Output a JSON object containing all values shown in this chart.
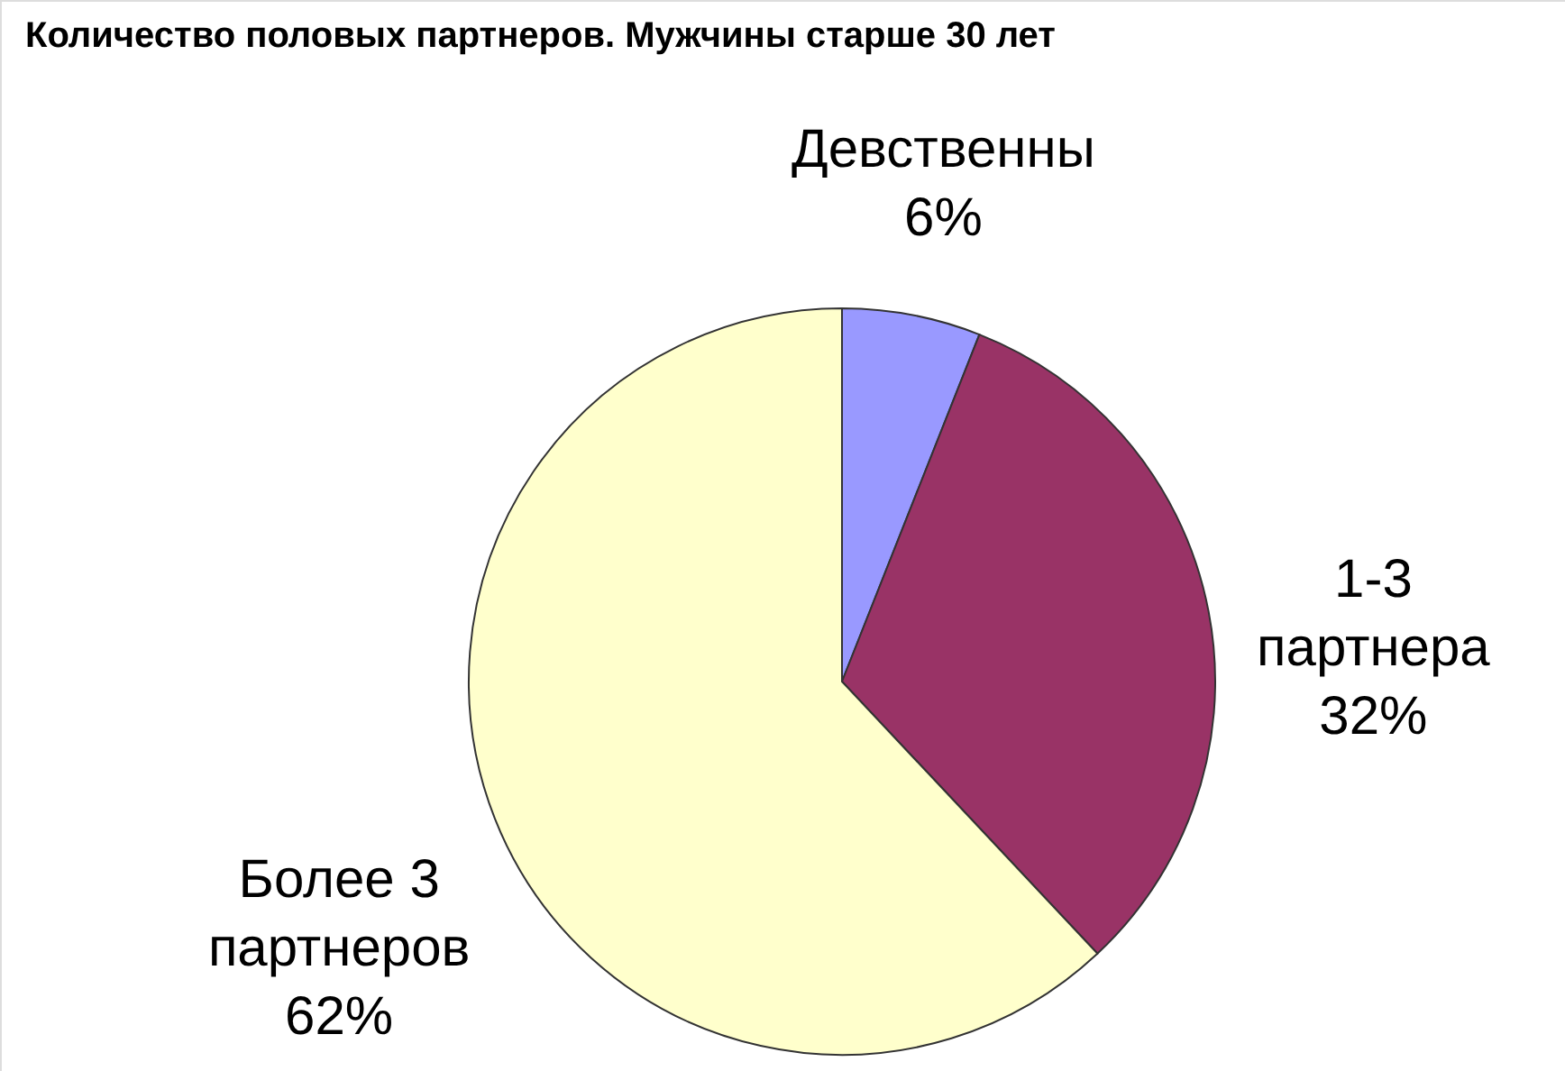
{
  "chart_data": {
    "type": "pie",
    "title": "Количество половых партнеров. Мужчины старше 30 лет",
    "categories": [
      "Девственны",
      "1-3\nпартнера",
      "Более 3\nпартнеров"
    ],
    "values": [
      6,
      32,
      62
    ],
    "colors": [
      "#9999ff",
      "#993366",
      "#ffffcc"
    ],
    "value_labels": [
      "6%",
      "32%",
      "62%"
    ]
  }
}
